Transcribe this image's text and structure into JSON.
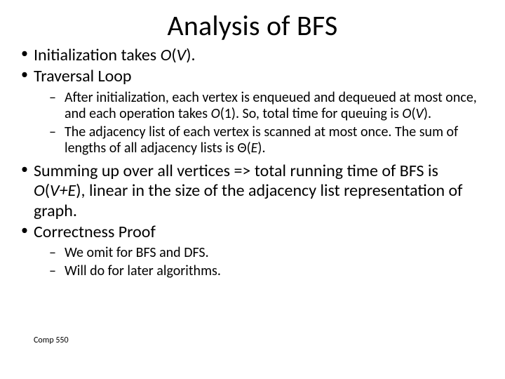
{
  "title": "Analysis of BFS",
  "bullets": {
    "b1_pre": "Initialization takes ",
    "b1_em": "O",
    "b1_post": "(",
    "b1_v": "V",
    "b1_end": ").",
    "b2": "Traversal Loop",
    "b2a_pre": "After initialization, each vertex is enqueued and dequeued at most once, and each operation takes ",
    "b2a_o1": "O",
    "b2a_mid": "(1).  So, total time for queuing is ",
    "b2a_ov": "O",
    "b2a_paren": "(",
    "b2a_v": "V",
    "b2a_end": ").",
    "b2b_pre": "The adjacency list of each vertex is scanned at most once.  The sum of lengths of all adjacency lists is ",
    "b2b_theta": "Θ",
    "b2b_paren": "(",
    "b2b_e": "E",
    "b2b_end": ").",
    "b3_pre": "Summing up over all vertices => total running time of BFS is ",
    "b3_o": "O",
    "b3_paren": "(",
    "b3_ve": "V+E",
    "b3_end": "), linear in the size of the adjacency list representation of graph.",
    "b4": "Correctness Proof",
    "b4a": "We omit for BFS and DFS.",
    "b4b": "Will do for later algorithms."
  },
  "footer": "Comp 550",
  "style": {
    "title_fontsize": 40,
    "lvl1_fontsize": 24,
    "lvl2_fontsize": 20,
    "footer_fontsize": 12,
    "text_color": "#000000",
    "background_color": "#ffffff",
    "font_family": "Calibri"
  }
}
